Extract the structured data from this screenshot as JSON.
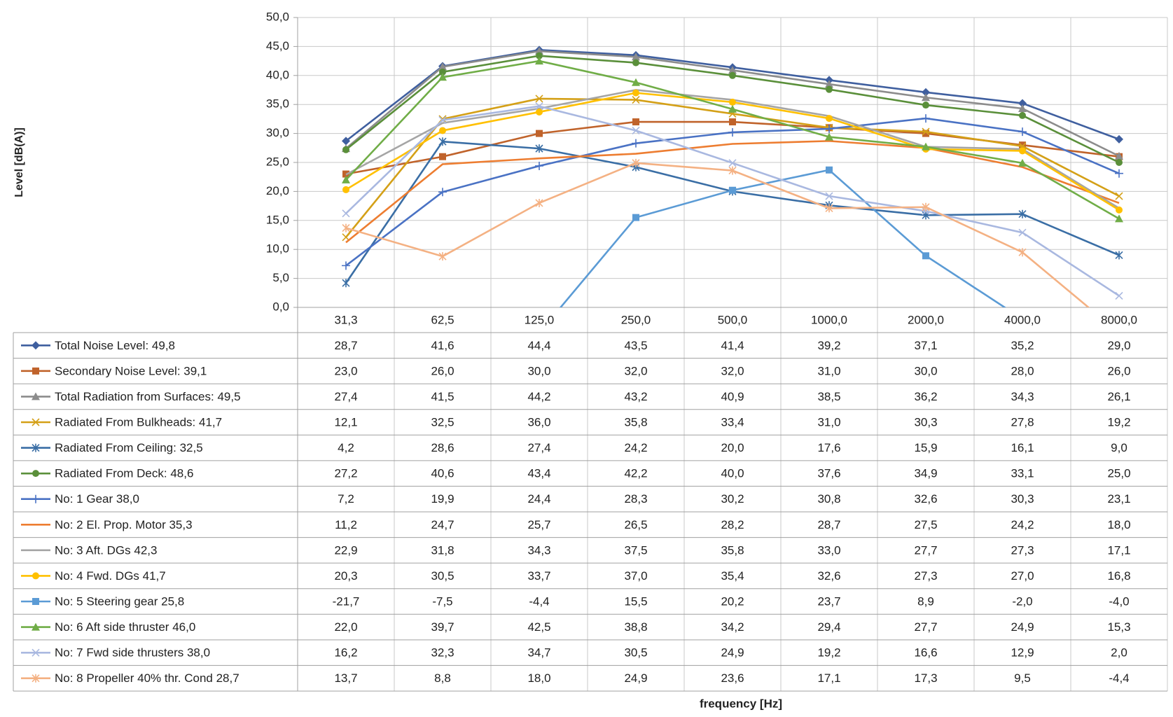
{
  "chart_data": {
    "type": "line",
    "x_label": "frequency [Hz]",
    "y_label": "Level [dB(A)]",
    "categories": [
      "31,3",
      "62,5",
      "125,0",
      "250,0",
      "500,0",
      "1000,0",
      "2000,0",
      "4000,0",
      "8000,0"
    ],
    "ylim": [
      0,
      50
    ],
    "yticks": [
      {
        "value": 0,
        "label": "0,0"
      },
      {
        "value": 5,
        "label": "5,0"
      },
      {
        "value": 10,
        "label": "10,0"
      },
      {
        "value": 15,
        "label": "15,0"
      },
      {
        "value": 20,
        "label": "20,0"
      },
      {
        "value": 25,
        "label": "25,0"
      },
      {
        "value": 30,
        "label": "30,0"
      },
      {
        "value": 35,
        "label": "35,0"
      },
      {
        "value": 40,
        "label": "40,0"
      },
      {
        "value": 45,
        "label": "45,0"
      },
      {
        "value": 50,
        "label": "50,0"
      }
    ],
    "grid": true,
    "data_table": true,
    "series": [
      {
        "name": "Total Noise Level: 49,8",
        "color": "#3f5f9f",
        "marker": "diamond",
        "values": [
          28.7,
          41.6,
          44.4,
          43.5,
          41.4,
          39.2,
          37.1,
          35.2,
          29.0
        ],
        "value_labels": [
          "28,7",
          "41,6",
          "44,4",
          "43,5",
          "41,4",
          "39,2",
          "37,1",
          "35,2",
          "29,0"
        ]
      },
      {
        "name": "Secondary Noise Level: 39,1",
        "color": "#c0632b",
        "marker": "square",
        "values": [
          23.0,
          26.0,
          30.0,
          32.0,
          32.0,
          31.0,
          30.0,
          28.0,
          26.0
        ],
        "value_labels": [
          "23,0",
          "26,0",
          "30,0",
          "32,0",
          "32,0",
          "31,0",
          "30,0",
          "28,0",
          "26,0"
        ]
      },
      {
        "name": "Total Radiation from Surfaces: 49,5",
        "color": "#8c8c8c",
        "marker": "triangle",
        "values": [
          27.4,
          41.5,
          44.2,
          43.2,
          40.9,
          38.5,
          36.2,
          34.3,
          26.1
        ],
        "value_labels": [
          "27,4",
          "41,5",
          "44,2",
          "43,2",
          "40,9",
          "38,5",
          "36,2",
          "34,3",
          "26,1"
        ]
      },
      {
        "name": "Radiated From Bulkheads: 41,7",
        "color": "#d4a017",
        "marker": "x",
        "values": [
          12.1,
          32.5,
          36.0,
          35.8,
          33.4,
          31.0,
          30.3,
          27.8,
          19.2
        ],
        "value_labels": [
          "12,1",
          "32,5",
          "36,0",
          "35,8",
          "33,4",
          "31,0",
          "30,3",
          "27,8",
          "19,2"
        ]
      },
      {
        "name": "Radiated From Ceiling: 32,5",
        "color": "#3a6ea5",
        "marker": "asterisk",
        "values": [
          4.2,
          28.6,
          27.4,
          24.2,
          20.0,
          17.6,
          15.9,
          16.1,
          9.0
        ],
        "value_labels": [
          "4,2",
          "28,6",
          "27,4",
          "24,2",
          "20,0",
          "17,6",
          "15,9",
          "16,1",
          "9,0"
        ]
      },
      {
        "name": "Radiated From Deck: 48,6",
        "color": "#5a8f3a",
        "marker": "circle",
        "values": [
          27.2,
          40.6,
          43.4,
          42.2,
          40.0,
          37.6,
          34.9,
          33.1,
          25.0
        ],
        "value_labels": [
          "27,2",
          "40,6",
          "43,4",
          "42,2",
          "40,0",
          "37,6",
          "34,9",
          "33,1",
          "25,0"
        ]
      },
      {
        "name": "No: 1 Gear 38,0",
        "color": "#4a72c4",
        "marker": "plus",
        "values": [
          7.2,
          19.9,
          24.4,
          28.3,
          30.2,
          30.8,
          32.6,
          30.3,
          23.1
        ],
        "value_labels": [
          "7,2",
          "19,9",
          "24,4",
          "28,3",
          "30,2",
          "30,8",
          "32,6",
          "30,3",
          "23,1"
        ]
      },
      {
        "name": "No: 2 El. Prop. Motor 35,3",
        "color": "#ed7d31",
        "marker": "none",
        "values": [
          11.2,
          24.7,
          25.7,
          26.5,
          28.2,
          28.7,
          27.5,
          24.2,
          18.0
        ],
        "value_labels": [
          "11,2",
          "24,7",
          "25,7",
          "26,5",
          "28,2",
          "28,7",
          "27,5",
          "24,2",
          "18,0"
        ]
      },
      {
        "name": "No: 3 Aft. DGs 42,3",
        "color": "#a5a5a5",
        "marker": "none",
        "values": [
          22.9,
          31.8,
          34.3,
          37.5,
          35.8,
          33.0,
          27.7,
          27.3,
          17.1
        ],
        "value_labels": [
          "22,9",
          "31,8",
          "34,3",
          "37,5",
          "35,8",
          "33,0",
          "27,7",
          "27,3",
          "17,1"
        ]
      },
      {
        "name": "No: 4 Fwd. DGs 41,7",
        "color": "#ffc000",
        "marker": "circle",
        "values": [
          20.3,
          30.5,
          33.7,
          37.0,
          35.4,
          32.6,
          27.3,
          27.0,
          16.8
        ],
        "value_labels": [
          "20,3",
          "30,5",
          "33,7",
          "37,0",
          "35,4",
          "32,6",
          "27,3",
          "27,0",
          "16,8"
        ]
      },
      {
        "name": "No: 5 Steering gear 25,8",
        "color": "#5b9bd5",
        "marker": "square",
        "values": [
          -21.7,
          -7.5,
          -4.4,
          15.5,
          20.2,
          23.7,
          8.9,
          -2.0,
          -4.0
        ],
        "value_labels": [
          "-21,7",
          "-7,5",
          "-4,4",
          "15,5",
          "20,2",
          "23,7",
          "8,9",
          "-2,0",
          "-4,0"
        ]
      },
      {
        "name": "No: 6 Aft side thruster 46,0",
        "color": "#70ad47",
        "marker": "triangle",
        "values": [
          22.0,
          39.7,
          42.5,
          38.8,
          34.2,
          29.4,
          27.7,
          24.9,
          15.3
        ],
        "value_labels": [
          "22,0",
          "39,7",
          "42,5",
          "38,8",
          "34,2",
          "29,4",
          "27,7",
          "24,9",
          "15,3"
        ]
      },
      {
        "name": "No: 7 Fwd side thrusters 38,0",
        "color": "#a9b8e0",
        "marker": "x",
        "values": [
          16.2,
          32.3,
          34.7,
          30.5,
          24.9,
          19.2,
          16.6,
          12.9,
          2.0
        ],
        "value_labels": [
          "16,2",
          "32,3",
          "34,7",
          "30,5",
          "24,9",
          "19,2",
          "16,6",
          "12,9",
          "2,0"
        ]
      },
      {
        "name": "No: 8 Propeller 40% thr. Cond 28,7",
        "color": "#f4b183",
        "marker": "asterisk",
        "values": [
          13.7,
          8.8,
          18.0,
          24.9,
          23.6,
          17.1,
          17.3,
          9.5,
          -4.4
        ],
        "value_labels": [
          "13,7",
          "8,8",
          "18,0",
          "24,9",
          "23,6",
          "17,1",
          "17,3",
          "9,5",
          "-4,4"
        ]
      }
    ]
  }
}
